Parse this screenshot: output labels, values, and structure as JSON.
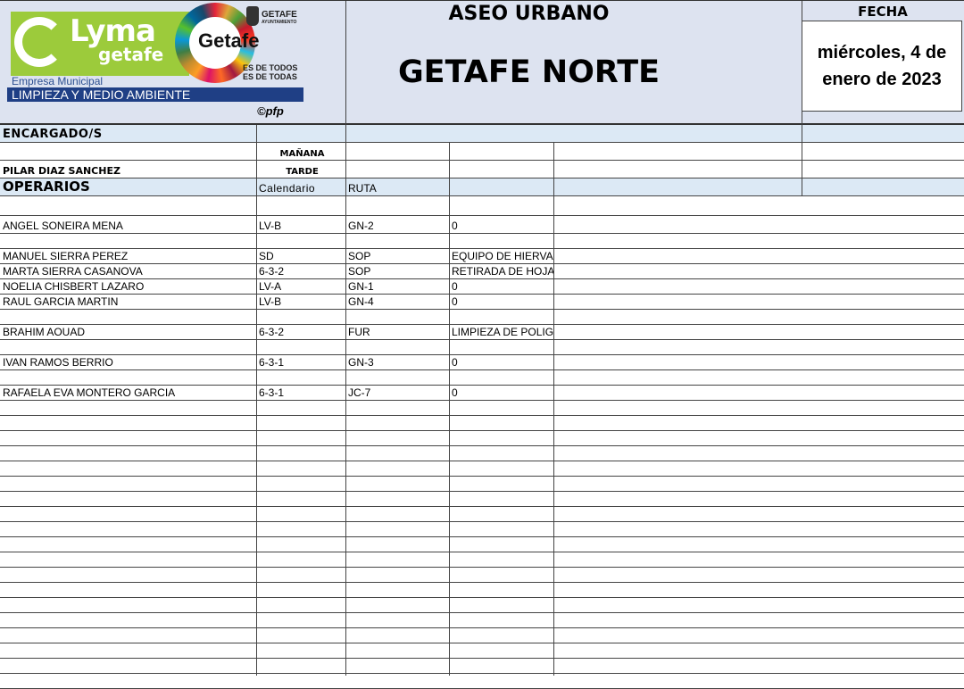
{
  "header": {
    "logo": {
      "brand": "Lyma",
      "brand_sub": "getafe",
      "city": "Getafe",
      "ayuntamiento": "GETAFE",
      "ayuntamiento_sub": "AYUNTAMIENTO",
      "slogan_1": "ES DE TODOS",
      "slogan_2": "ES DE TODAS",
      "company_type": "Empresa Municipal",
      "company_area": "LIMPIEZA Y MEDIO AMBIENTE",
      "copyright": "©pfp"
    },
    "title": "ASEO URBANO",
    "subtitle": "GETAFE NORTE",
    "fecha_label": "FECHA",
    "fecha_value": "miércoles, 4 de enero de 2023"
  },
  "encargados": {
    "label": "ENCARGADO/S",
    "manana": "MAÑANA",
    "tarde": "TARDE",
    "tarde_name": "PILAR DIAZ SANCHEZ"
  },
  "operarios": {
    "label": "OPERARIOS",
    "col_calendario": "Calendario",
    "col_ruta": "RUTA"
  },
  "rows": [
    {
      "name": "",
      "cal": "",
      "ruta": "",
      "tarea": ""
    },
    {
      "name": "ANGEL SONEIRA MENA",
      "cal": "LV-B",
      "ruta": "GN-2",
      "tarea": "0"
    },
    {
      "name": "",
      "cal": "",
      "ruta": "",
      "tarea": ""
    },
    {
      "name": "MANUEL SIERRA PEREZ",
      "cal": "SD",
      "ruta": "SOP",
      "tarea": "EQUIPO DE HIERVA"
    },
    {
      "name": "MARTA SIERRA CASANOVA",
      "cal": "6-3-2",
      "ruta": "SOP",
      "tarea": "RETIRADA DE HOJA"
    },
    {
      "name": "NOELIA CHISBERT LAZARO",
      "cal": "LV-A",
      "ruta": "GN-1",
      "tarea": "0"
    },
    {
      "name": "RAUL GARCIA MARTIN",
      "cal": "LV-B",
      "ruta": "GN-4",
      "tarea": "0"
    },
    {
      "name": "",
      "cal": "",
      "ruta": "",
      "tarea": ""
    },
    {
      "name": "BRAHIM AOUAD",
      "cal": "6-3-2",
      "ruta": "FUR",
      "tarea": "LIMPIEZA DE POLIG"
    },
    {
      "name": "",
      "cal": "",
      "ruta": "",
      "tarea": ""
    },
    {
      "name": "IVAN RAMOS BERRIO",
      "cal": "6-3-1",
      "ruta": "GN-3",
      "tarea": "0"
    },
    {
      "name": "",
      "cal": "",
      "ruta": "",
      "tarea": ""
    },
    {
      "name": "RAFAELA EVA MONTERO GARCIA",
      "cal": "6-3-1",
      "ruta": "JC-7",
      "tarea": "0"
    }
  ]
}
